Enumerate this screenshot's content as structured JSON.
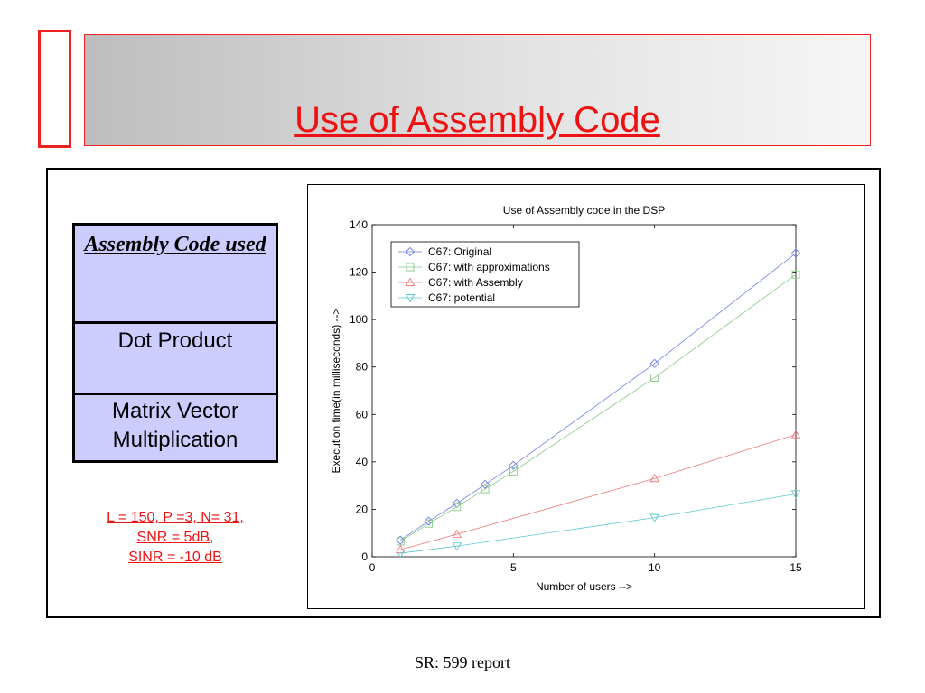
{
  "title": "Use of Assembly Code",
  "table": {
    "header": "Assembly Code used",
    "rows": [
      "Dot Product",
      "Matrix Vector Multiplication"
    ]
  },
  "params": [
    "L = 150, P =3, N= 31,",
    "SNR = 5dB,",
    "SINR = -10 dB"
  ],
  "footer": "SR: 599 report",
  "colors": {
    "accent": "#ee1111",
    "table_bg": "#ccccff"
  },
  "chart_data": {
    "type": "line",
    "title": "Use of Assembly code in the DSP",
    "xlabel": "Number of users -->",
    "ylabel": "Execution time(in milliseconds) -->",
    "xlim": [
      0,
      15
    ],
    "ylim": [
      0,
      140
    ],
    "xticks": [
      0,
      5,
      10,
      15
    ],
    "yticks": [
      0,
      20,
      40,
      60,
      80,
      100,
      120,
      140
    ],
    "legend_position": "top-left",
    "grid": false,
    "series": [
      {
        "name": "C67: Original",
        "marker": "diamond",
        "color": "#6e7fe8",
        "x": [
          1,
          2,
          3,
          4,
          5,
          10,
          15
        ],
        "y": [
          7,
          15,
          22.5,
          30.5,
          38.5,
          81.5,
          128
        ]
      },
      {
        "name": "C67: with approximations",
        "marker": "square",
        "color": "#86c986",
        "x": [
          1,
          2,
          3,
          4,
          5,
          10,
          15
        ],
        "y": [
          6.5,
          14,
          21,
          28.5,
          36,
          75.5,
          119
        ]
      },
      {
        "name": "C67: with Assembly",
        "marker": "triangle-up",
        "color": "#ef7a7a",
        "x": [
          1,
          3,
          10,
          15
        ],
        "y": [
          3,
          9.5,
          33,
          51.5
        ]
      },
      {
        "name": "C67: potential",
        "marker": "triangle-down",
        "color": "#5cc8d2",
        "x": [
          1,
          3,
          10,
          15
        ],
        "y": [
          1.5,
          4.5,
          16.5,
          26.5
        ]
      }
    ]
  }
}
